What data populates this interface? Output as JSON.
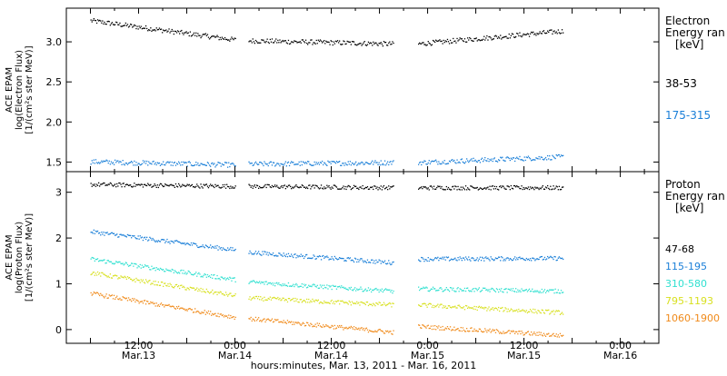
{
  "chart_data": [
    {
      "type": "scatter",
      "ylabel_lines": [
        "ACE EPAM",
        "log(Electron Flux)",
        "[1/(cm²s ster MeV)]"
      ],
      "yticks": [
        "1.5",
        "2.0",
        "2.5",
        "3.0"
      ],
      "ylim": [
        1.38,
        3.42
      ],
      "legend_title": [
        "Electron",
        "Energy ran"
      ],
      "legend_unit": "[keV]",
      "series": [
        {
          "name": "38-53",
          "color": "#000000",
          "segments": [
            {
              "x0": 0.0,
              "x1": 0.75,
              "y0": 3.27,
              "y1": 3.03
            },
            {
              "x0": 0.82,
              "x1": 1.57,
              "y0": 3.02,
              "y1": 2.98
            },
            {
              "x0": 1.7,
              "x1": 2.45,
              "y0": 2.98,
              "y1": 3.14
            }
          ]
        },
        {
          "name": "175-315",
          "color": "#1a7fd8",
          "segments": [
            {
              "x0": 0.0,
              "x1": 0.75,
              "y0": 1.51,
              "y1": 1.47
            },
            {
              "x0": 0.82,
              "x1": 1.57,
              "y0": 1.48,
              "y1": 1.5
            },
            {
              "x0": 1.7,
              "x1": 2.45,
              "y0": 1.5,
              "y1": 1.57
            }
          ]
        }
      ]
    },
    {
      "type": "scatter",
      "ylabel_lines": [
        "ACE EPAM",
        "log(Proton Flux)",
        "[1/(cm²s ster MeV)]"
      ],
      "yticks": [
        "0",
        "1",
        "2",
        "3"
      ],
      "ylim": [
        -0.3,
        3.45
      ],
      "legend_title": [
        "Proton",
        "Energy ran"
      ],
      "legend_unit": "[keV]",
      "series": [
        {
          "name": "47-68",
          "color": "#000000",
          "segments": [
            {
              "x0": 0.0,
              "x1": 0.75,
              "y0": 3.18,
              "y1": 3.14
            },
            {
              "x0": 0.82,
              "x1": 1.57,
              "y0": 3.14,
              "y1": 3.11
            },
            {
              "x0": 1.7,
              "x1": 2.45,
              "y0": 3.11,
              "y1": 3.11
            }
          ]
        },
        {
          "name": "115-195",
          "color": "#1a7fd8",
          "segments": [
            {
              "x0": 0.0,
              "x1": 0.75,
              "y0": 2.15,
              "y1": 1.75
            },
            {
              "x0": 0.82,
              "x1": 1.57,
              "y0": 1.7,
              "y1": 1.47
            },
            {
              "x0": 1.7,
              "x1": 2.45,
              "y0": 1.55,
              "y1": 1.57
            }
          ]
        },
        {
          "name": "310-580",
          "color": "#30e0d0",
          "segments": [
            {
              "x0": 0.0,
              "x1": 0.75,
              "y0": 1.55,
              "y1": 1.1
            },
            {
              "x0": 0.82,
              "x1": 1.57,
              "y0": 1.05,
              "y1": 0.85
            },
            {
              "x0": 1.7,
              "x1": 2.45,
              "y0": 0.9,
              "y1": 0.85
            }
          ]
        },
        {
          "name": "795-1193",
          "color": "#d8e020",
          "segments": [
            {
              "x0": 0.0,
              "x1": 0.75,
              "y0": 1.25,
              "y1": 0.75
            },
            {
              "x0": 0.82,
              "x1": 1.57,
              "y0": 0.7,
              "y1": 0.55
            },
            {
              "x0": 1.7,
              "x1": 2.45,
              "y0": 0.55,
              "y1": 0.38
            }
          ]
        },
        {
          "name": "1060-1900",
          "color": "#f08a1a",
          "segments": [
            {
              "x0": 0.0,
              "x1": 0.75,
              "y0": 0.8,
              "y1": 0.28
            },
            {
              "x0": 0.82,
              "x1": 1.57,
              "y0": 0.25,
              "y1": -0.05
            },
            {
              "x0": 1.7,
              "x1": 2.45,
              "y0": 0.08,
              "y1": -0.12
            }
          ]
        }
      ]
    }
  ],
  "x_axis": {
    "xlim": [
      -0.125,
      2.95
    ],
    "ticks": [
      {
        "x": 0.25,
        "time": "12:00",
        "date": "Mar.13"
      },
      {
        "x": 0.75,
        "time": "0:00",
        "date": "Mar.14"
      },
      {
        "x": 1.25,
        "time": "12:00",
        "date": "Mar.14"
      },
      {
        "x": 1.75,
        "time": "0:00",
        "date": "Mar.15"
      },
      {
        "x": 2.25,
        "time": "12:00",
        "date": "Mar.15"
      },
      {
        "x": 2.75,
        "time": "0:00",
        "date": "Mar.16"
      }
    ],
    "label": "hours:minutes, Mar. 13, 2011 - Mar. 16, 2011"
  }
}
